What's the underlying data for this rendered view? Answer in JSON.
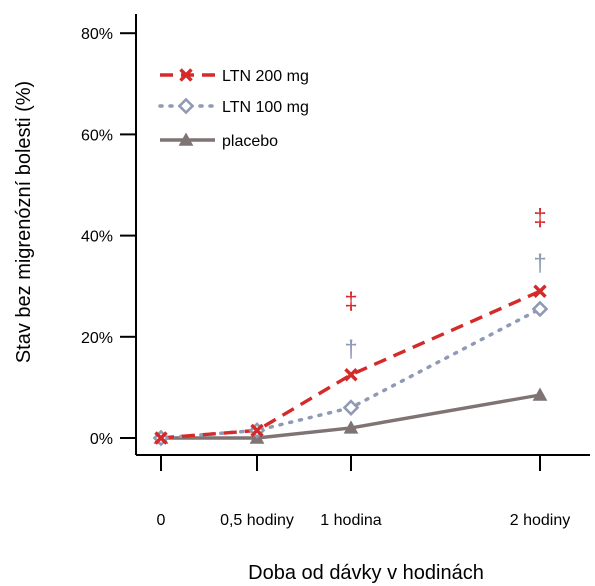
{
  "chart_data": {
    "type": "line",
    "title": "",
    "xlabel": "Doba od dávky v hodinách",
    "ylabel": "Stav bez migrenózní bolesti (%)",
    "ylim": [
      0,
      80
    ],
    "grid": false,
    "legend_position": "top-left",
    "x": [
      0,
      0.5,
      1,
      2
    ],
    "x_tick_labels": [
      "0",
      "0,5 hodiny",
      "1 hodina",
      "2 hodiny"
    ],
    "y_ticks": [
      0,
      20,
      40,
      60,
      80
    ],
    "y_tick_labels": [
      "0%",
      "20%",
      "40%",
      "60%",
      "80%"
    ],
    "series": [
      {
        "name": "LTN 200 mg",
        "values": [
          0,
          1.5,
          12.5,
          29
        ],
        "color": "#d42a2a",
        "marker": "x",
        "line": "dashed",
        "annotations": [
          {
            "x": 1,
            "symbol": "‡",
            "value": 27.5
          },
          {
            "x": 2,
            "symbol": "‡",
            "value": 44
          }
        ]
      },
      {
        "name": "LTN 100 mg",
        "values": [
          0,
          1.5,
          6,
          25.5
        ],
        "color": "#8f9ab5",
        "marker": "diamond",
        "line": "dotted",
        "annotations": [
          {
            "x": 1,
            "symbol": "†",
            "value": 18
          },
          {
            "x": 2,
            "symbol": "†",
            "value": 35
          }
        ]
      },
      {
        "name": "placebo",
        "values": [
          0,
          0,
          2,
          8.5
        ],
        "color": "#7f7473",
        "marker": "triangle",
        "line": "solid",
        "annotations": []
      }
    ]
  }
}
